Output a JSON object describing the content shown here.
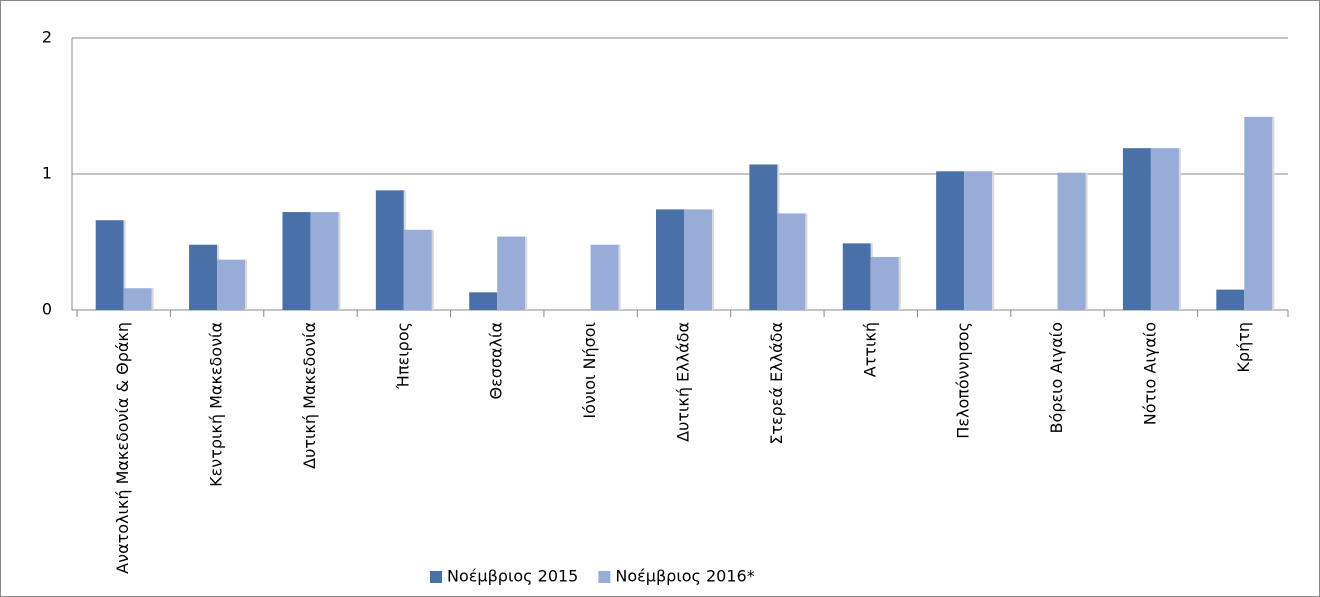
{
  "chart_data": {
    "type": "bar",
    "categories": [
      "Ανατολική Μακεδονία & Θράκη",
      "Κεντρική Μακεδονία",
      "Δυτική Μακεδονία",
      "Ήπειρος",
      "Θεσσαλία",
      "Ιόνιοι Νήσοι",
      "Δυτική Ελλάδα",
      "Στερεά Ελλάδα",
      "Αττική",
      "Πελοπόννησος",
      "Βόρειο Αιγαίο",
      "Νότιο Αιγαίο",
      "Κρήτη"
    ],
    "series": [
      {
        "name": "Νοέμβριος 2015",
        "color": "#4a70a8",
        "values": [
          0.66,
          0.48,
          0.72,
          0.88,
          0.13,
          0,
          0.74,
          1.07,
          0.49,
          1.02,
          0,
          1.19,
          0.15
        ]
      },
      {
        "name": "Νοέμβριος 2016*",
        "color": "#97acd6",
        "values": [
          0.16,
          0.37,
          0.72,
          0.59,
          0.54,
          0.48,
          0.74,
          0.71,
          0.39,
          1.02,
          1.01,
          1.19,
          1.42
        ]
      }
    ],
    "ylim": [
      0,
      2
    ],
    "yticks": [
      0,
      1,
      2
    ],
    "grid": true,
    "legend": "bottom"
  }
}
